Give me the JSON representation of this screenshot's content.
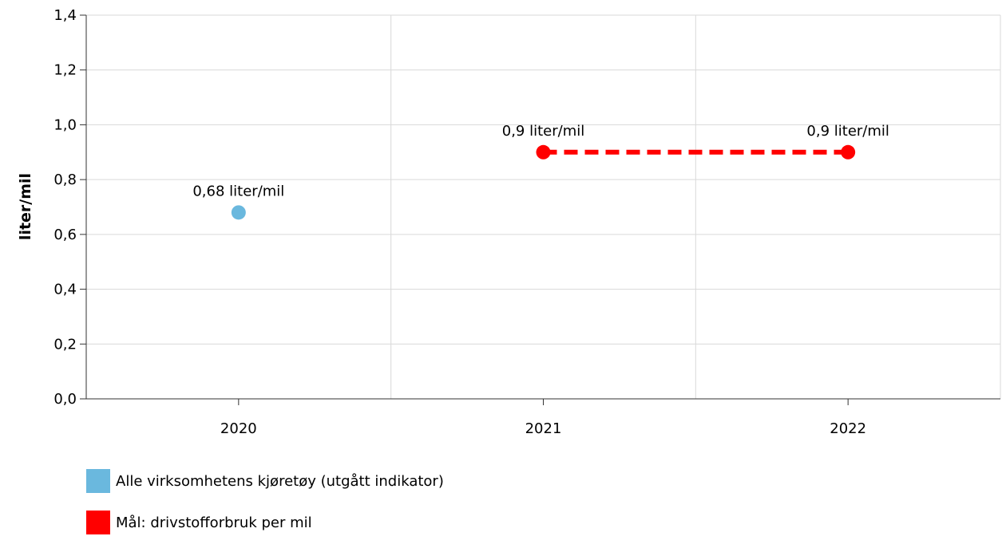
{
  "chart_data": {
    "type": "line",
    "ylabel": "liter/mil",
    "xlabel": "",
    "categories": [
      "2020",
      "2021",
      "2022"
    ],
    "ylim": [
      0,
      1.4
    ],
    "yticks": [
      "0,0",
      "0,2",
      "0,4",
      "0,6",
      "0,8",
      "1,0",
      "1,2",
      "1,4"
    ],
    "grid": true,
    "legend_position": "bottom-left",
    "series": [
      {
        "name": "Alle virksomhetens kjøretøy (utgått indikator)",
        "color": "#6ab8de",
        "style": "marker",
        "points": [
          {
            "x": "2020",
            "y": 0.68,
            "label": "0,68 liter/mil"
          }
        ]
      },
      {
        "name": "Mål: drivstofforbruk per mil",
        "color": "#ff0000",
        "style": "dashed",
        "points": [
          {
            "x": "2021",
            "y": 0.9,
            "label": "0,9 liter/mil"
          },
          {
            "x": "2022",
            "y": 0.9,
            "label": "0,9 liter/mil"
          }
        ]
      }
    ]
  }
}
